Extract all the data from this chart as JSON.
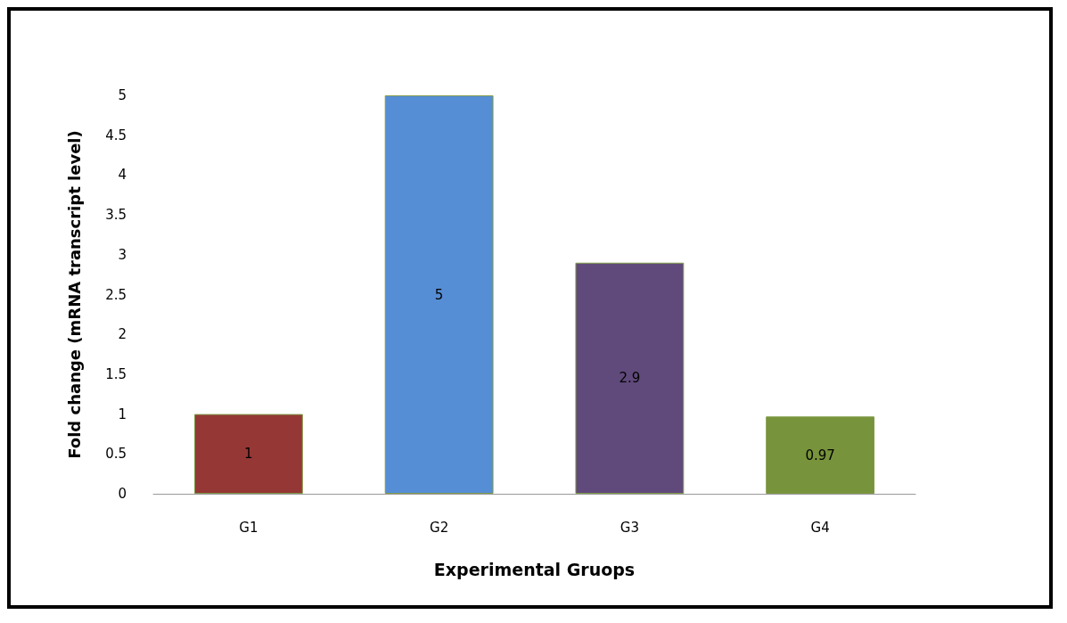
{
  "chart_data": {
    "type": "bar",
    "xlabel": "Experimental Gruops",
    "ylabel": "Fold change (mRNA transcript level)",
    "categories": [
      "G1",
      "G2",
      "G3",
      "G4"
    ],
    "values": [
      1,
      5,
      2.9,
      0.97
    ],
    "colors": [
      "#953735",
      "#558ed5",
      "#604a7b",
      "#77933c"
    ],
    "ylim": [
      0,
      5
    ],
    "yticks": [
      0,
      0.5,
      1,
      1.5,
      2,
      2.5,
      3,
      3.5,
      4,
      4.5,
      5
    ],
    "data_labels": true,
    "grid": false
  }
}
